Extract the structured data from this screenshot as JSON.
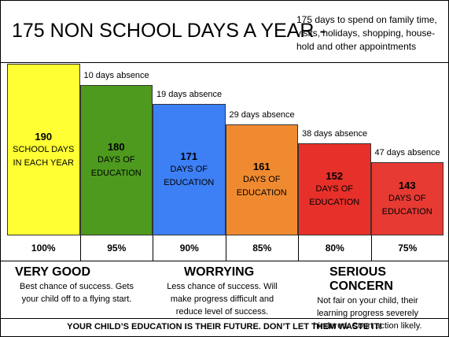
{
  "chart_data": {
    "type": "bar",
    "title": "175 NON SCHOOL DAYS A YEAR -",
    "subtitle": "175 days to spend on family time, visits, holidays, shopping, house-hold and other appointments",
    "categories": [
      "SCHOOL DAYS IN EACH YEAR",
      "DAYS OF EDUCATION",
      "DAYS OF EDUCATION",
      "DAYS OF EDUCATION",
      "DAYS OF EDUCATION",
      "DAYS OF EDUCATION"
    ],
    "values": [
      190,
      180,
      171,
      161,
      152,
      143
    ],
    "colors": [
      "#ffff33",
      "#4e9a1e",
      "#3d7ff5",
      "#f08a30",
      "#e8302a",
      "#e63a33"
    ],
    "ylim": [
      108,
      190
    ],
    "absence_labels": [
      null,
      "10 days absence",
      "19 days absence",
      "29 days absence",
      "38 days absence",
      "47 days absence"
    ],
    "percent_labels": [
      "100%",
      "95%",
      "90%",
      "85%",
      "80%",
      "75%"
    ],
    "verdicts": [
      {
        "title": "VERY GOOD",
        "text": "Best chance of success.  Gets your child off to a flying start."
      },
      {
        "title": "WORRYING",
        "text": "Less chance of success.  Will make progress difficult and reduce level of success."
      },
      {
        "title": "SERIOUS CONCERN",
        "text": "Not fair on your child, their learning progress severely hindered.  Court action likely."
      }
    ],
    "footer": "YOUR CHILD’S EDUCATION IS THEIR FUTURE.  DON’T LET THEM WASTE IT!"
  }
}
